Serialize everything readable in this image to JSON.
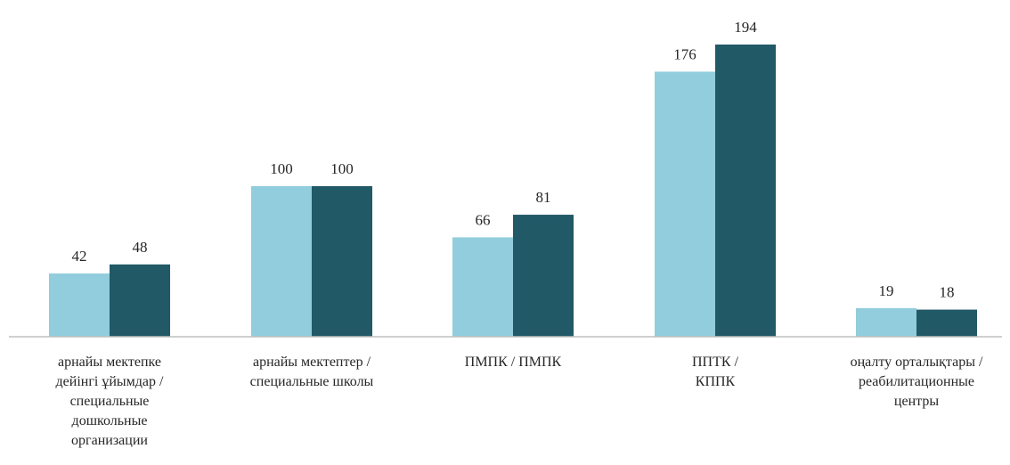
{
  "chart_data": {
    "type": "bar",
    "categories": [
      "арнайы мектепке\nдейінгі ұйымдар /\nспециальные\nдошкольные\nорганизации",
      "арнайы  мектептер /\nспециальные школы",
      "ПМПК / ПМПК",
      "ППТК /\nКППК",
      "оңалту орталықтары /\nреабилитационные\nцентры"
    ],
    "series": [
      {
        "values": [
          42,
          100,
          66,
          176,
          19
        ],
        "color": "#92cddd"
      },
      {
        "values": [
          48,
          100,
          81,
          194,
          18
        ],
        "color": "#215967"
      }
    ],
    "ylim": [
      0,
      200
    ],
    "grid": false,
    "legend": "none",
    "axis_color": "#bfbfbf"
  }
}
